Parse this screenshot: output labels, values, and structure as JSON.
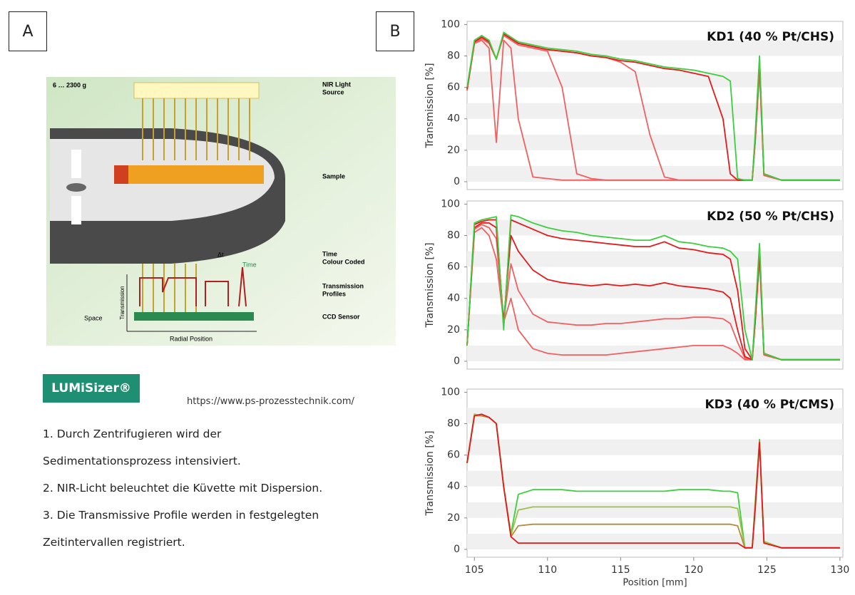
{
  "panel_a": {
    "label": "A",
    "diagram": {
      "force": "6 … 2300 g",
      "light_source": [
        "NIR Light",
        "Source"
      ],
      "sample": "Sample",
      "time_coded": [
        "Time",
        "Colour Coded"
      ],
      "profiles": [
        "Transmission",
        "Profiles"
      ],
      "sensor": "CCD Sensor",
      "delta_t": "Δt",
      "time": "Time",
      "space": "Space",
      "y_axis": "Transmission",
      "x_axis": "Radial Position"
    },
    "logo": "LUMiSizer®",
    "url": "https://www.ps-prozesstechnik.com/",
    "steps": [
      "1. Durch Zentrifugieren wird der",
      "Sedimentationsprozess intensiviert.",
      "2. NIR-Licht beleuchtet die Küvette mit Dispersion.",
      "3. Die Transmissive Profile werden in festgelegten",
      "Zeitintervallen registriert."
    ]
  },
  "panel_b": {
    "label": "B"
  },
  "chart_data": [
    {
      "type": "line",
      "title": "KD1 (40 % Pt/CHS)",
      "y_label": "Transmission [%]",
      "x": [
        104.5,
        105,
        105.5,
        106,
        106.5,
        107,
        107.5,
        108,
        109,
        110,
        111,
        112,
        113,
        114,
        115,
        116,
        117,
        118,
        119,
        120,
        121,
        122,
        122.5,
        123,
        123.5,
        124,
        124.2,
        124.5,
        124.8,
        126,
        130
      ],
      "xlim": [
        104.5,
        130.2
      ],
      "ylim": [
        -5,
        102
      ],
      "yticks": [
        0,
        20,
        40,
        60,
        80,
        100
      ],
      "grid": true,
      "series": [
        {
          "color": "#f06060",
          "values": [
            58,
            88,
            90,
            85,
            25,
            90,
            85,
            40,
            3,
            2,
            1,
            1,
            1,
            1,
            1,
            1,
            1,
            1,
            1,
            1,
            1,
            1,
            1,
            1,
            1,
            1,
            25,
            70,
            4,
            1,
            1
          ]
        },
        {
          "color": "#f06060",
          "values": [
            58,
            88,
            91,
            88,
            78,
            93,
            90,
            87,
            85,
            83,
            60,
            5,
            2,
            1,
            1,
            1,
            1,
            1,
            1,
            1,
            1,
            1,
            1,
            1,
            1,
            1,
            25,
            72,
            4,
            1,
            1
          ]
        },
        {
          "color": "#f06060",
          "values": [
            58,
            89,
            92,
            89,
            78,
            94,
            91,
            88,
            86,
            84,
            83,
            82,
            80,
            79,
            76,
            70,
            30,
            3,
            1,
            1,
            1,
            1,
            1,
            1,
            1,
            1,
            26,
            74,
            4,
            1,
            1
          ]
        },
        {
          "color": "#e41a1a",
          "values": [
            59,
            89,
            92,
            89,
            78,
            94,
            91,
            88,
            86,
            84,
            83,
            82,
            80,
            79,
            77,
            76,
            74,
            72,
            71,
            69,
            67,
            40,
            5,
            1,
            1,
            1,
            28,
            78,
            5,
            1,
            1
          ]
        },
        {
          "color": "#3ccf3c",
          "values": [
            60,
            90,
            93,
            90,
            78,
            95,
            92,
            89,
            87,
            85,
            84,
            83,
            81,
            80,
            78,
            77,
            75,
            73,
            72,
            71,
            69,
            67,
            64,
            2,
            1,
            1,
            30,
            80,
            5,
            1,
            1
          ]
        }
      ]
    },
    {
      "type": "line",
      "title": "KD2 (50 % Pt/CHS)",
      "y_label": "Transmission [%]",
      "x": [
        104.5,
        105,
        105.5,
        106,
        106.5,
        107,
        107.5,
        108,
        109,
        110,
        111,
        112,
        113,
        114,
        115,
        116,
        117,
        118,
        119,
        120,
        121,
        122,
        122.5,
        123,
        123.5,
        124,
        124.2,
        124.5,
        124.8,
        126,
        130
      ],
      "xlim": [
        104.5,
        130.2
      ],
      "ylim": [
        -5,
        102
      ],
      "yticks": [
        0,
        20,
        40,
        60,
        80,
        100
      ],
      "grid": true,
      "series": [
        {
          "color": "#f06060",
          "values": [
            10,
            82,
            85,
            80,
            65,
            25,
            40,
            20,
            8,
            5,
            4,
            4,
            4,
            4,
            5,
            6,
            7,
            8,
            9,
            10,
            10,
            10,
            8,
            5,
            1,
            1,
            25,
            65,
            4,
            1,
            1
          ]
        },
        {
          "color": "#f06060",
          "values": [
            10,
            84,
            87,
            85,
            78,
            25,
            62,
            45,
            30,
            25,
            24,
            23,
            23,
            24,
            24,
            25,
            26,
            27,
            27,
            28,
            28,
            27,
            24,
            12,
            2,
            1,
            25,
            68,
            4,
            1,
            1
          ]
        },
        {
          "color": "#e41a1a",
          "values": [
            10,
            85,
            88,
            88,
            85,
            25,
            80,
            70,
            58,
            52,
            50,
            49,
            48,
            49,
            48,
            49,
            48,
            50,
            48,
            47,
            46,
            44,
            40,
            20,
            3,
            1,
            25,
            70,
            5,
            1,
            1
          ]
        },
        {
          "color": "#e41a1a",
          "values": [
            10,
            87,
            89,
            90,
            90,
            22,
            90,
            88,
            84,
            80,
            78,
            77,
            76,
            75,
            74,
            73,
            73,
            76,
            72,
            71,
            69,
            68,
            65,
            45,
            8,
            1,
            28,
            73,
            5,
            1,
            1
          ]
        },
        {
          "color": "#3ccf3c",
          "values": [
            10,
            88,
            90,
            91,
            92,
            20,
            93,
            92,
            88,
            85,
            83,
            82,
            80,
            79,
            78,
            77,
            77,
            80,
            76,
            75,
            73,
            72,
            70,
            65,
            20,
            1,
            30,
            75,
            5,
            1,
            1
          ]
        }
      ]
    },
    {
      "type": "line",
      "title": "KD3 (40 % Pt/CMS)",
      "y_label": "Transmission [%]",
      "x_label": "Position [mm]",
      "x": [
        104.5,
        105,
        105.5,
        106,
        106.5,
        107,
        107.5,
        108,
        109,
        110,
        111,
        112,
        113,
        114,
        115,
        116,
        117,
        118,
        119,
        120,
        121,
        122,
        122.5,
        123,
        123.5,
        124,
        124.2,
        124.5,
        124.8,
        126,
        130
      ],
      "xlim": [
        104.5,
        130.2
      ],
      "ylim": [
        -5,
        102
      ],
      "yticks": [
        0,
        20,
        40,
        60,
        80,
        100
      ],
      "xticks": [
        105,
        110,
        115,
        120,
        125,
        130
      ],
      "grid": true,
      "series": [
        {
          "color": "#3ccf3c",
          "values": [
            55,
            86,
            85,
            84,
            80,
            40,
            10,
            35,
            38,
            38,
            38,
            37,
            37,
            37,
            37,
            37,
            37,
            37,
            38,
            38,
            38,
            37,
            37,
            36,
            1,
            1,
            30,
            70,
            5,
            1,
            1
          ]
        },
        {
          "color": "#9cc04a",
          "values": [
            55,
            86,
            85,
            84,
            80,
            40,
            9,
            25,
            27,
            27,
            27,
            27,
            27,
            27,
            27,
            27,
            27,
            27,
            27,
            27,
            27,
            27,
            27,
            26,
            1,
            1,
            28,
            69,
            5,
            1,
            1
          ]
        },
        {
          "color": "#b58a3a",
          "values": [
            55,
            85,
            85,
            84,
            80,
            40,
            8,
            15,
            16,
            16,
            16,
            16,
            16,
            16,
            16,
            16,
            16,
            16,
            16,
            16,
            16,
            16,
            16,
            15,
            1,
            1,
            27,
            69,
            4,
            1,
            1
          ]
        },
        {
          "color": "#e41a1a",
          "values": [
            55,
            85,
            86,
            84,
            80,
            40,
            8,
            4,
            4,
            4,
            4,
            4,
            4,
            4,
            4,
            4,
            4,
            4,
            4,
            4,
            4,
            4,
            4,
            4,
            1,
            1,
            25,
            68,
            4,
            1,
            1
          ]
        }
      ]
    }
  ]
}
